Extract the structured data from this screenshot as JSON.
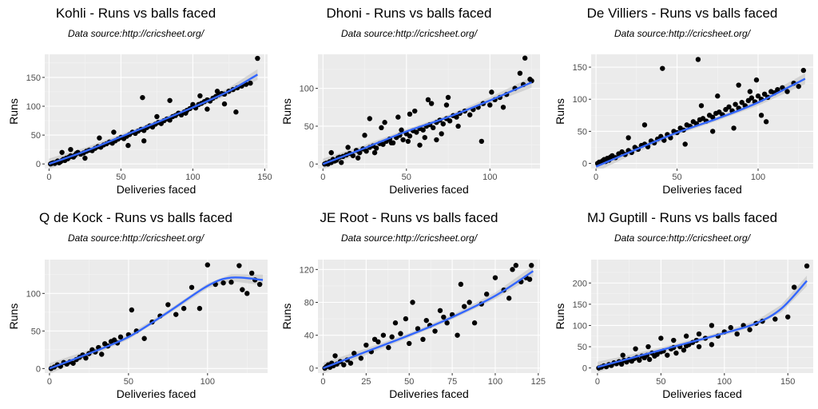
{
  "figure": {
    "background": "#ffffff",
    "panel_background": "#ebebeb",
    "grid_major": "#ffffff",
    "grid_minor": "#f4f4f4",
    "point_color": "#000000",
    "smooth_color": "#3366ff",
    "band_color": "#bdbdbd"
  },
  "chart_data": [
    {
      "type": "scatter",
      "title": "Kohli - Runs vs balls faced",
      "subtitle": "Data source:http://cricsheet.org/",
      "xlabel": "Deliveries faced",
      "ylabel": "Runs",
      "xlim": [
        -3,
        152
      ],
      "ylim": [
        -8,
        190
      ],
      "xticks": [
        0,
        50,
        100,
        150
      ],
      "yticks": [
        0,
        50,
        100,
        150
      ],
      "x": [
        1,
        2,
        3,
        4,
        5,
        6,
        7,
        8,
        9,
        10,
        11,
        12,
        13,
        14,
        15,
        16,
        17,
        18,
        19,
        20,
        22,
        24,
        26,
        28,
        30,
        32,
        34,
        36,
        38,
        40,
        42,
        44,
        46,
        48,
        50,
        52,
        54,
        56,
        58,
        60,
        62,
        64,
        66,
        68,
        70,
        72,
        74,
        76,
        78,
        80,
        82,
        84,
        86,
        88,
        90,
        92,
        94,
        96,
        98,
        100,
        102,
        104,
        106,
        108,
        110,
        112,
        114,
        116,
        118,
        120,
        122,
        125,
        128,
        131,
        134,
        137,
        140,
        145,
        9,
        15,
        25,
        35,
        45,
        55,
        65,
        66,
        75,
        84,
        95,
        100,
        105,
        110,
        117,
        122,
        130
      ],
      "y": [
        0,
        1,
        2,
        1,
        3,
        5,
        2,
        4,
        6,
        8,
        6,
        10,
        9,
        12,
        14,
        13,
        12,
        15,
        18,
        20,
        17,
        19,
        22,
        24,
        23,
        27,
        30,
        29,
        33,
        35,
        38,
        36,
        40,
        43,
        46,
        44,
        48,
        51,
        55,
        53,
        57,
        60,
        58,
        63,
        66,
        64,
        69,
        72,
        70,
        75,
        78,
        76,
        82,
        84,
        88,
        85,
        90,
        93,
        96,
        100,
        97,
        103,
        105,
        108,
        111,
        109,
        114,
        117,
        120,
        122,
        121,
        126,
        129,
        132,
        135,
        138,
        140,
        183,
        20,
        25,
        10,
        45,
        55,
        32,
        115,
        40,
        82,
        110,
        88,
        103,
        118,
        95,
        126,
        104,
        90
      ],
      "fit_x": [
        0,
        25,
        50,
        75,
        100,
        125,
        145
      ],
      "fit_y": [
        0,
        22,
        47,
        72,
        98,
        126,
        155
      ]
    },
    {
      "type": "scatter",
      "title": "Dhoni - Runs vs balls faced",
      "subtitle": "Data source:http://cricsheet.org/",
      "xlabel": "Deliveries faced",
      "ylabel": "Runs",
      "xlim": [
        -3,
        130
      ],
      "ylim": [
        -6,
        145
      ],
      "xticks": [
        0,
        50,
        100
      ],
      "yticks": [
        0,
        50,
        100
      ],
      "x": [
        1,
        2,
        3,
        4,
        5,
        6,
        7,
        8,
        9,
        10,
        12,
        14,
        16,
        18,
        20,
        22,
        24,
        26,
        28,
        30,
        32,
        34,
        36,
        38,
        40,
        42,
        44,
        46,
        48,
        50,
        52,
        54,
        56,
        58,
        60,
        62,
        64,
        66,
        68,
        70,
        72,
        74,
        76,
        78,
        80,
        82,
        85,
        88,
        90,
        93,
        96,
        100,
        103,
        106,
        110,
        115,
        120,
        125,
        5,
        11,
        15,
        21,
        25,
        31,
        35,
        41,
        45,
        51,
        55,
        61,
        65,
        71,
        75,
        81,
        95,
        101,
        108,
        118,
        121,
        124,
        28,
        37,
        58,
        63,
        47,
        52,
        68,
        74
      ],
      "y": [
        0,
        1,
        0,
        3,
        2,
        6,
        4,
        5,
        8,
        9,
        10,
        12,
        14,
        11,
        18,
        15,
        20,
        17,
        22,
        24,
        21,
        27,
        26,
        30,
        33,
        28,
        35,
        38,
        32,
        40,
        37,
        44,
        42,
        47,
        45,
        50,
        52,
        48,
        55,
        58,
        53,
        60,
        57,
        64,
        62,
        67,
        70,
        65,
        72,
        75,
        80,
        78,
        85,
        88,
        92,
        100,
        105,
        110,
        15,
        2,
        22,
        8,
        38,
        15,
        48,
        28,
        62,
        30,
        70,
        35,
        80,
        40,
        88,
        50,
        30,
        95,
        75,
        120,
        140,
        112,
        60,
        55,
        25,
        85,
        45,
        66,
        32,
        78
      ],
      "fit_x": [
        0,
        25,
        50,
        75,
        100,
        125
      ],
      "fit_y": [
        0,
        21,
        43,
        62,
        84,
        108
      ]
    },
    {
      "type": "scatter",
      "title": "De Villiers - Runs vs balls faced",
      "subtitle": "Data source:http://cricsheet.org/",
      "xlabel": "Deliveries faced",
      "ylabel": "Runs",
      "xlim": [
        -3,
        134
      ],
      "ylim": [
        -8,
        170
      ],
      "xticks": [
        0,
        50,
        100
      ],
      "yticks": [
        0,
        50,
        100,
        150
      ],
      "x": [
        1,
        2,
        3,
        4,
        5,
        6,
        7,
        8,
        9,
        10,
        12,
        14,
        16,
        18,
        20,
        22,
        24,
        26,
        28,
        30,
        32,
        34,
        36,
        38,
        40,
        42,
        44,
        46,
        48,
        50,
        52,
        54,
        56,
        58,
        60,
        62,
        64,
        66,
        68,
        70,
        72,
        74,
        76,
        78,
        80,
        82,
        84,
        86,
        88,
        90,
        92,
        94,
        96,
        98,
        100,
        102,
        104,
        106,
        108,
        110,
        112,
        115,
        118,
        122,
        125,
        128,
        41,
        63,
        20,
        30,
        55,
        75,
        85,
        95,
        105,
        65,
        72,
        88,
        99,
        102
      ],
      "y": [
        0,
        2,
        1,
        4,
        6,
        3,
        8,
        5,
        10,
        12,
        9,
        15,
        18,
        14,
        20,
        17,
        25,
        22,
        28,
        30,
        26,
        35,
        32,
        38,
        42,
        36,
        45,
        40,
        50,
        48,
        55,
        52,
        60,
        58,
        65,
        62,
        68,
        70,
        66,
        75,
        72,
        78,
        80,
        76,
        84,
        88,
        82,
        92,
        86,
        95,
        90,
        98,
        102,
        96,
        105,
        100,
        108,
        103,
        112,
        110,
        115,
        118,
        112,
        125,
        120,
        145,
        148,
        162,
        40,
        60,
        30,
        105,
        55,
        112,
        65,
        90,
        50,
        122,
        130,
        75
      ],
      "fit_x": [
        0,
        25,
        50,
        75,
        100,
        129
      ],
      "fit_y": [
        -5,
        22,
        48,
        70,
        95,
        132
      ]
    },
    {
      "type": "scatter",
      "title": "Q de Kock - Runs vs balls faced",
      "subtitle": "Data source:http://cricsheet.org/",
      "xlabel": "Deliveries faced",
      "ylabel": "Runs",
      "xlim": [
        -3,
        138
      ],
      "ylim": [
        -6,
        145
      ],
      "xticks": [
        0,
        50,
        100
      ],
      "yticks": [
        0,
        50,
        100
      ],
      "x": [
        1,
        3,
        5,
        7,
        9,
        11,
        13,
        15,
        17,
        19,
        21,
        23,
        25,
        27,
        29,
        31,
        33,
        35,
        37,
        39,
        41,
        43,
        45,
        50,
        52,
        55,
        60,
        65,
        70,
        75,
        80,
        85,
        90,
        95,
        100,
        105,
        110,
        115,
        120,
        122,
        125,
        128,
        130,
        133
      ],
      "y": [
        0,
        2,
        5,
        3,
        8,
        6,
        9,
        7,
        12,
        15,
        18,
        14,
        20,
        25,
        22,
        28,
        19,
        33,
        30,
        36,
        38,
        34,
        42,
        45,
        78,
        50,
        40,
        62,
        70,
        85,
        72,
        80,
        108,
        80,
        138,
        112,
        114,
        115,
        137,
        105,
        100,
        127,
        118,
        112
      ],
      "fit_x": [
        0,
        25,
        50,
        75,
        100,
        115,
        135
      ],
      "fit_y": [
        0,
        20,
        42,
        75,
        110,
        121,
        118
      ]
    },
    {
      "type": "scatter",
      "title": "JE Root - Runs vs balls faced",
      "subtitle": "Data source:http://cricsheet.org/",
      "xlabel": "Deliveries faced",
      "ylabel": "Runs",
      "xlim": [
        -3,
        126
      ],
      "ylim": [
        -6,
        132
      ],
      "xticks": [
        0,
        25,
        50,
        75,
        100,
        125
      ],
      "yticks": [
        0,
        40,
        80,
        120
      ],
      "x": [
        1,
        2,
        3,
        4,
        5,
        6,
        7,
        8,
        10,
        12,
        14,
        16,
        18,
        22,
        25,
        28,
        30,
        32,
        35,
        38,
        40,
        42,
        45,
        48,
        50,
        52,
        55,
        58,
        60,
        62,
        65,
        68,
        70,
        72,
        75,
        78,
        80,
        82,
        85,
        88,
        92,
        95,
        100,
        105,
        108,
        110,
        112,
        115,
        118,
        120,
        121
      ],
      "y": [
        0,
        2,
        4,
        1,
        6,
        3,
        15,
        5,
        8,
        4,
        10,
        6,
        18,
        12,
        28,
        20,
        35,
        32,
        40,
        25,
        38,
        55,
        42,
        60,
        30,
        80,
        48,
        35,
        58,
        52,
        45,
        70,
        62,
        55,
        65,
        40,
        102,
        75,
        80,
        55,
        78,
        90,
        110,
        95,
        85,
        120,
        125,
        105,
        110,
        108,
        125
      ],
      "fit_x": [
        0,
        25,
        50,
        75,
        100,
        122
      ],
      "fit_y": [
        0,
        20,
        40,
        62,
        88,
        118
      ]
    },
    {
      "type": "scatter",
      "title": "MJ Guptill - Runs vs balls faced",
      "subtitle": "Data source:http://cricsheet.org/",
      "xlabel": "Deliveries faced",
      "ylabel": "Runs",
      "xlim": [
        -5,
        170
      ],
      "ylim": [
        -12,
        255
      ],
      "xticks": [
        0,
        50,
        100,
        150
      ],
      "yticks": [
        0,
        50,
        100,
        150,
        200
      ],
      "x": [
        1,
        3,
        5,
        7,
        9,
        11,
        13,
        15,
        17,
        19,
        21,
        23,
        25,
        27,
        29,
        31,
        33,
        35,
        37,
        39,
        41,
        43,
        45,
        47,
        50,
        52,
        55,
        58,
        60,
        62,
        65,
        68,
        70,
        72,
        75,
        78,
        80,
        85,
        90,
        95,
        100,
        105,
        110,
        115,
        120,
        125,
        130,
        140,
        150,
        155,
        165,
        20,
        30,
        40,
        50,
        60,
        70,
        80,
        90
      ],
      "y": [
        0,
        2,
        5,
        3,
        8,
        6,
        12,
        10,
        15,
        9,
        18,
        14,
        20,
        16,
        22,
        25,
        18,
        28,
        24,
        30,
        20,
        35,
        28,
        32,
        38,
        40,
        30,
        45,
        48,
        35,
        50,
        42,
        52,
        55,
        60,
        65,
        50,
        70,
        55,
        75,
        85,
        95,
        80,
        100,
        90,
        105,
        110,
        115,
        120,
        190,
        240,
        30,
        45,
        50,
        70,
        65,
        75,
        80,
        100
      ],
      "fit_x": [
        0,
        25,
        50,
        75,
        100,
        125,
        145,
        165
      ],
      "fit_y": [
        2,
        22,
        42,
        62,
        82,
        105,
        140,
        205
      ]
    }
  ]
}
